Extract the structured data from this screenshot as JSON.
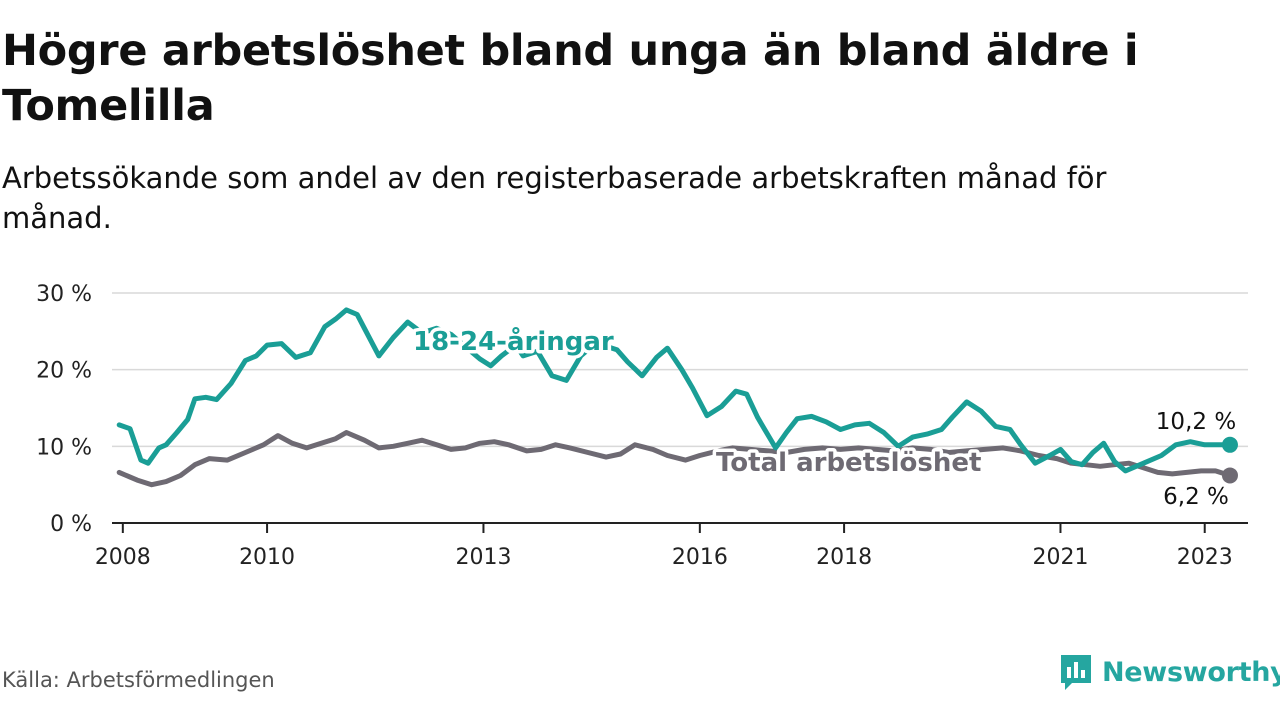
{
  "title": "Högre arbetslöshet bland unga än bland äldre i Tomelilla",
  "subtitle": "Arbetssökande som andel av den registerbaserade arbetskraften månad för månad.",
  "source": "Källa: Arbetsförmedlingen",
  "brand": {
    "name": "Newsworthy",
    "icon": "newsworthy-logo-icon",
    "color": "#25a6a0"
  },
  "colors": {
    "youth": "#1a9e96",
    "total": "#6e6a73",
    "grid": "#d9d9d9",
    "axis": "#222222"
  },
  "chart_data": {
    "type": "line",
    "title": "Högre arbetslöshet bland unga än bland äldre i Tomelilla",
    "xlabel": "",
    "ylabel": "",
    "xlim": [
      2007.85,
      2023.6
    ],
    "ylim": [
      0,
      30
    ],
    "yticks": [
      {
        "value": 0,
        "label": "0 %"
      },
      {
        "value": 10,
        "label": "10 %"
      },
      {
        "value": 20,
        "label": "20 %"
      },
      {
        "value": 30,
        "label": "30 %"
      }
    ],
    "xticks": [
      {
        "value": 2008,
        "label": "2008"
      },
      {
        "value": 2010,
        "label": "2010"
      },
      {
        "value": 2013,
        "label": "2013"
      },
      {
        "value": 2016,
        "label": "2016"
      },
      {
        "value": 2018,
        "label": "2018"
      },
      {
        "value": 2021,
        "label": "2021"
      },
      {
        "value": 2023,
        "label": "2023"
      }
    ],
    "grid": true,
    "series": [
      {
        "name": "18-24-åringar",
        "color": "#1a9e96",
        "end_label": "10,2 %",
        "x": [
          2007.95,
          2008.1,
          2008.25,
          2008.35,
          2008.5,
          2008.6,
          2008.75,
          2008.9,
          2009.0,
          2009.15,
          2009.3,
          2009.5,
          2009.7,
          2009.85,
          2010.0,
          2010.2,
          2010.4,
          2010.6,
          2010.8,
          2010.95,
          2011.1,
          2011.25,
          2011.35,
          2011.55,
          2011.75,
          2011.95,
          2012.15,
          2012.35,
          2012.55,
          2012.75,
          2012.95,
          2013.1,
          2013.25,
          2013.45,
          2013.55,
          2013.75,
          2013.95,
          2014.15,
          2014.35,
          2014.45,
          2014.65,
          2014.85,
          2015.0,
          2015.2,
          2015.4,
          2015.55,
          2015.75,
          2015.9,
          2016.1,
          2016.3,
          2016.5,
          2016.65,
          2016.8,
          2016.9,
          2017.05,
          2017.2,
          2017.35,
          2017.55,
          2017.75,
          2017.95,
          2018.15,
          2018.35,
          2018.55,
          2018.75,
          2018.95,
          2019.15,
          2019.35,
          2019.5,
          2019.7,
          2019.9,
          2020.1,
          2020.3,
          2020.45,
          2020.65,
          2020.85,
          2021.0,
          2021.15,
          2021.3,
          2021.45,
          2021.6,
          2021.75,
          2021.9,
          2022.05,
          2022.2,
          2022.4,
          2022.6,
          2022.8,
          2023.0,
          2023.15,
          2023.35
        ],
        "values": [
          12.8,
          12.3,
          8.2,
          7.8,
          9.8,
          10.2,
          11.8,
          13.5,
          16.2,
          16.4,
          16.1,
          18.2,
          21.2,
          21.8,
          23.2,
          23.4,
          21.6,
          22.2,
          25.6,
          26.6,
          27.8,
          27.2,
          25.4,
          21.8,
          24.2,
          26.2,
          24.8,
          25.4,
          24.6,
          23.0,
          21.4,
          20.5,
          21.8,
          23.2,
          21.8,
          22.4,
          19.2,
          18.6,
          21.8,
          22.6,
          23.2,
          22.6,
          21.0,
          19.2,
          21.6,
          22.8,
          20.0,
          17.6,
          14.0,
          15.2,
          17.2,
          16.8,
          13.8,
          12.2,
          9.8,
          11.8,
          13.6,
          13.9,
          13.2,
          12.2,
          12.8,
          13.0,
          11.8,
          10.0,
          11.2,
          11.6,
          12.2,
          13.8,
          15.8,
          14.6,
          12.6,
          12.2,
          10.2,
          7.8,
          8.8,
          9.6,
          8.0,
          7.6,
          9.2,
          10.4,
          8.0,
          6.8,
          7.4,
          8.0,
          8.8,
          10.2,
          10.6,
          10.2,
          10.2,
          10.2
        ]
      },
      {
        "name": "Total arbetslöshet",
        "color": "#6e6a73",
        "end_label": "6,2 %",
        "x": [
          2007.95,
          2008.2,
          2008.4,
          2008.6,
          2008.8,
          2009.0,
          2009.2,
          2009.45,
          2009.7,
          2009.95,
          2010.15,
          2010.35,
          2010.55,
          2010.75,
          2010.95,
          2011.1,
          2011.35,
          2011.55,
          2011.75,
          2011.95,
          2012.15,
          2012.35,
          2012.55,
          2012.75,
          2012.95,
          2013.15,
          2013.35,
          2013.6,
          2013.8,
          2014.0,
          2014.2,
          2014.45,
          2014.7,
          2014.9,
          2015.1,
          2015.35,
          2015.55,
          2015.8,
          2016.0,
          2016.25,
          2016.45,
          2016.7,
          2016.95,
          2017.2,
          2017.45,
          2017.7,
          2017.95,
          2018.2,
          2018.45,
          2018.7,
          2018.95,
          2019.2,
          2019.45,
          2019.7,
          2019.95,
          2020.2,
          2020.45,
          2020.7,
          2020.95,
          2021.15,
          2021.35,
          2021.55,
          2021.75,
          2021.95,
          2022.15,
          2022.35,
          2022.55,
          2022.75,
          2022.95,
          2023.15,
          2023.35
        ],
        "values": [
          6.6,
          5.6,
          5.0,
          5.4,
          6.2,
          7.6,
          8.4,
          8.2,
          9.2,
          10.2,
          11.4,
          10.4,
          9.8,
          10.4,
          11.0,
          11.8,
          10.8,
          9.8,
          10.0,
          10.4,
          10.8,
          10.2,
          9.6,
          9.8,
          10.4,
          10.6,
          10.2,
          9.4,
          9.6,
          10.2,
          9.8,
          9.2,
          8.6,
          9.0,
          10.2,
          9.6,
          8.8,
          8.2,
          8.8,
          9.4,
          9.8,
          9.6,
          9.4,
          9.2,
          9.6,
          9.8,
          9.6,
          9.8,
          9.6,
          9.4,
          9.8,
          9.6,
          9.2,
          9.4,
          9.6,
          9.8,
          9.4,
          8.8,
          8.4,
          7.8,
          7.6,
          7.4,
          7.6,
          7.8,
          7.2,
          6.6,
          6.4,
          6.6,
          6.8,
          6.8,
          6.2
        ]
      }
    ]
  }
}
